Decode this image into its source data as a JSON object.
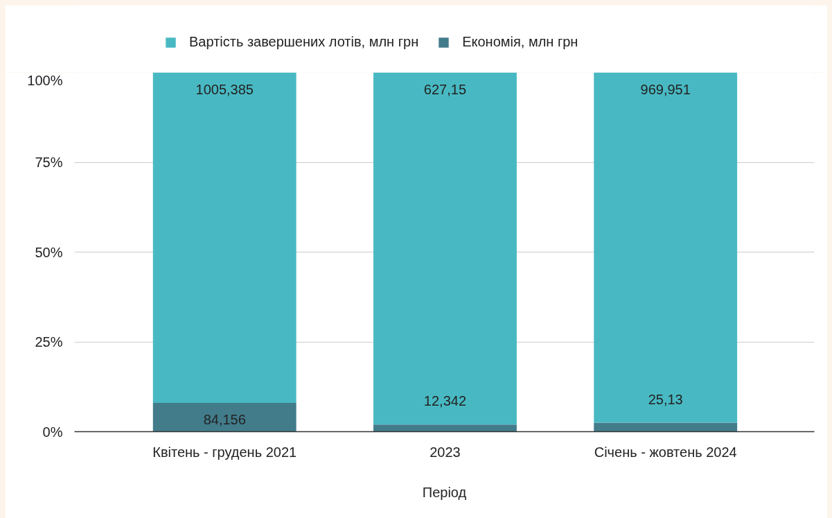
{
  "chart_data": {
    "type": "bar",
    "stacked": true,
    "xlabel": "Період",
    "categories": [
      "Квітень - грудень 2021",
      "2023",
      "Січень - жовтень 2024"
    ],
    "series": [
      {
        "name": "Економія, млн грн",
        "color": "#427c8b",
        "values": [
          8,
          2,
          2.5
        ]
      },
      {
        "name": "Вартість завершених лотів, млн грн",
        "color": "#48b9c3",
        "values": [
          92,
          98,
          97.5
        ]
      }
    ],
    "annotations": [
      {
        "text": "1005,385",
        "x": "Квітень - грудень 2021",
        "y": 100
      },
      {
        "text": "627,15",
        "x": "2023",
        "y": 100
      },
      {
        "text": "969,951",
        "x": "Січень - жовтень 2024",
        "y": 100
      },
      {
        "text": "84,156",
        "x": "Квітень - грудень 2021",
        "y": 8
      },
      {
        "text": "12,342",
        "x": "2023",
        "y": 2
      },
      {
        "text": "25,13",
        "x": "Січень - жовтень 2024",
        "y": 2.5
      }
    ],
    "ylim": [
      0,
      100
    ],
    "yticks": [
      {
        "value": 0,
        "label": "0%"
      },
      {
        "value": 25,
        "label": "25%"
      },
      {
        "value": 50,
        "label": "50%"
      },
      {
        "value": 75,
        "label": "75%"
      },
      {
        "value": 100,
        "label": "100%"
      }
    ],
    "grid": "y",
    "legend": "top"
  }
}
